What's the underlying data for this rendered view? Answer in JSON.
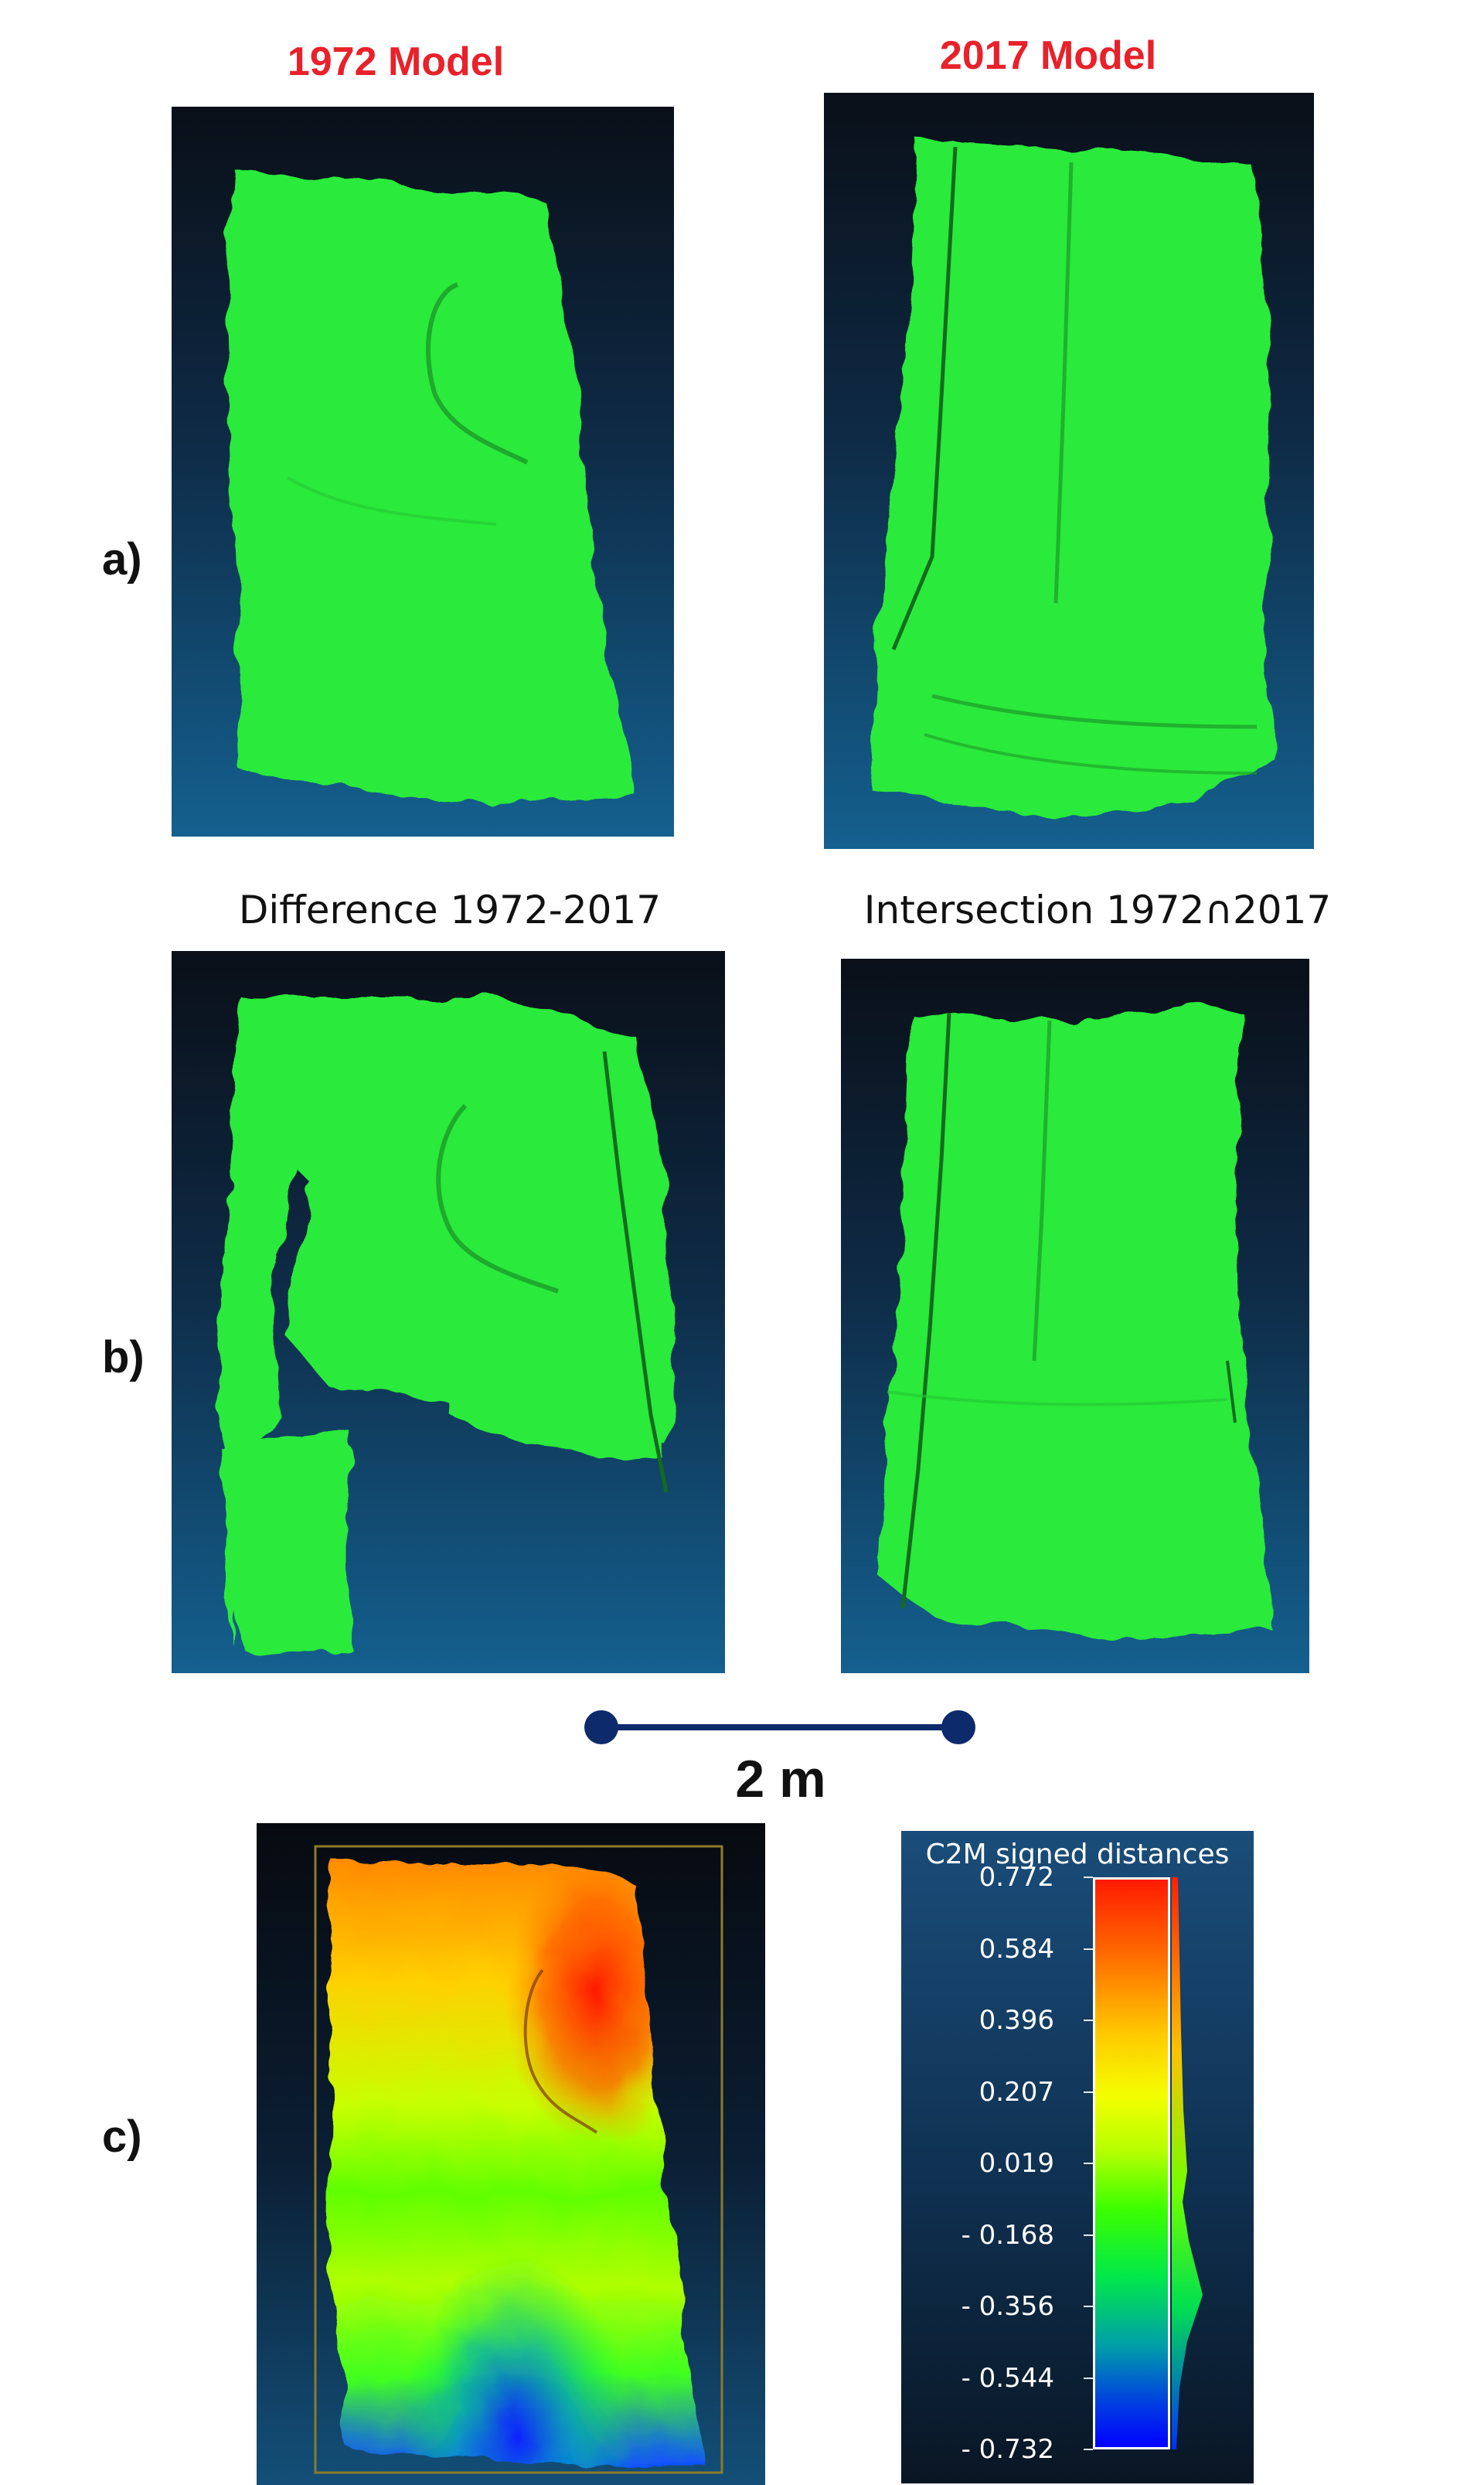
{
  "row_a": {
    "label": "a)",
    "left_title": "1972 Model",
    "right_title": "2017 Model"
  },
  "row_b": {
    "label": "b)",
    "left_title": "Difference 1972-2017",
    "right_title": "Intersection 1972∩2017"
  },
  "scale_bar": {
    "label": "2 m"
  },
  "row_c": {
    "label": "c)"
  },
  "legend": {
    "title": "C2M signed distances",
    "ticks": [
      "0.772",
      "0.584",
      "0.396",
      "0.207",
      "0.019",
      "- 0.168",
      "- 0.356",
      "- 0.544",
      "- 0.732"
    ]
  },
  "colors": {
    "mesh_green": "#2bea3a",
    "title_red": "#e8212a",
    "scale_bar": "#0d2a6b"
  }
}
